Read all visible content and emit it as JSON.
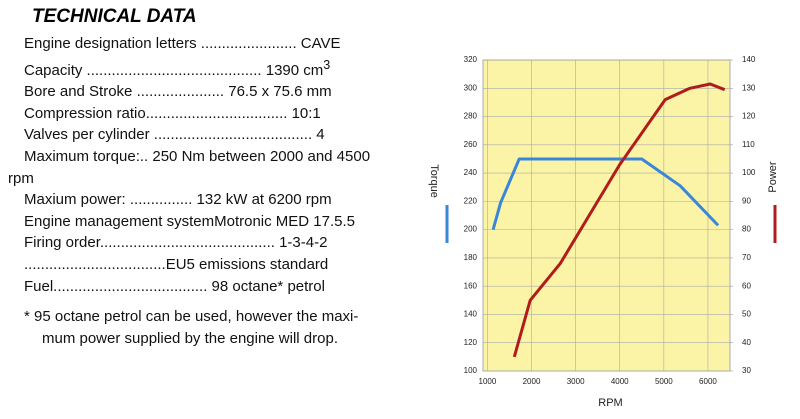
{
  "header": {
    "title": "TECHNICAL DATA"
  },
  "specs": [
    {
      "text": "Engine designation letters ....................... CAVE"
    },
    {
      "text": "Capacity .......................................... 1390 cm",
      "sup": "3"
    },
    {
      "text": "Bore and Stroke ..................... 76.5 x 75.6 mm"
    },
    {
      "text": "Compression ratio.................................. 10:1"
    },
    {
      "text": "Valves per cylinder ...................................... 4"
    },
    {
      "text": "Maximum torque:.. 250 Nm between 2000 and 4500 rpm"
    },
    {
      "text": "Maxium power: ............... 132 kW at 6200 rpm"
    },
    {
      "text": "Engine management systemMotronic MED 17.5.5"
    },
    {
      "text": "Firing order.......................................... 1-3-4-2"
    },
    {
      "text": "..................................EU5 emissions standard"
    },
    {
      "text": "Fuel..................................... 98 octane* petrol"
    }
  ],
  "footnote": [
    "* 95 octane petrol can be used, however the maxi-",
    "mum power supplied by the engine will drop."
  ],
  "chart_data": {
    "type": "line",
    "x_label": "RPM",
    "y_label": "Torque",
    "y2_label": "Power",
    "xlim": [
      900,
      6500
    ],
    "xticks": [
      1000,
      2000,
      3000,
      4000,
      5000,
      6000
    ],
    "ylim": [
      100,
      320
    ],
    "yticks": [
      100,
      120,
      140,
      160,
      180,
      200,
      220,
      240,
      260,
      280,
      300,
      320
    ],
    "y2lim": [
      30,
      140
    ],
    "y2ticks": [
      30,
      40,
      50,
      60,
      70,
      80,
      90,
      100,
      110,
      120,
      130,
      140
    ],
    "grid": true,
    "series": [
      {
        "name": "Torque",
        "color": "#3a86d8",
        "x": [
          1130,
          1300,
          1720,
          4500,
          5370,
          6230
        ],
        "values": [
          200,
          219,
          250,
          250,
          231,
          203
        ]
      },
      {
        "name": "Power",
        "color": "#b01c1c",
        "axis": "y2",
        "x": [
          1610,
          1970,
          2650,
          4000,
          5030,
          5590,
          6050,
          6380
        ],
        "values": [
          35,
          55,
          68,
          103,
          126,
          130,
          131.5,
          129.5
        ]
      }
    ]
  }
}
